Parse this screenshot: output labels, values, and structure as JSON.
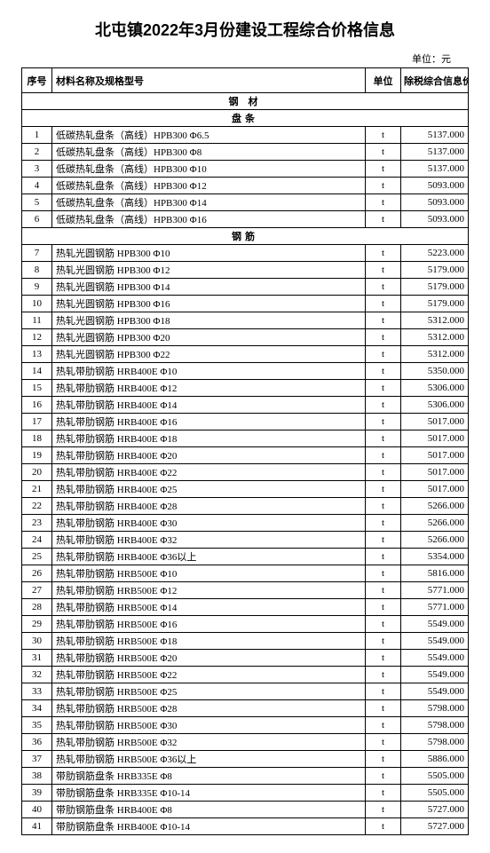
{
  "title": "北屯镇2022年3月份建设工程综合价格信息",
  "unit_label": "单位：元",
  "headers": {
    "seq": "序号",
    "name": "材料名称及规格型号",
    "unit": "单位",
    "price": "除税综合信息价"
  },
  "section_steel": "钢  材",
  "section_pantiao": "盘条",
  "section_gangjin": "钢筋",
  "rows_pantiao": [
    {
      "seq": "1",
      "name": "低碳热轧盘条（高线）HPB300 Φ6.5",
      "unit": "t",
      "price": "5137.000"
    },
    {
      "seq": "2",
      "name": "低碳热轧盘条（高线）HPB300 Φ8",
      "unit": "t",
      "price": "5137.000"
    },
    {
      "seq": "3",
      "name": "低碳热轧盘条（高线）HPB300 Φ10",
      "unit": "t",
      "price": "5137.000"
    },
    {
      "seq": "4",
      "name": "低碳热轧盘条（高线）HPB300 Φ12",
      "unit": "t",
      "price": "5093.000"
    },
    {
      "seq": "5",
      "name": "低碳热轧盘条（高线）HPB300 Φ14",
      "unit": "t",
      "price": "5093.000"
    },
    {
      "seq": "6",
      "name": "低碳热轧盘条（高线）HPB300 Φ16",
      "unit": "t",
      "price": "5093.000"
    }
  ],
  "rows_gangjin": [
    {
      "seq": "7",
      "name": "热轧光圆钢筋 HPB300 Φ10",
      "unit": "t",
      "price": "5223.000"
    },
    {
      "seq": "8",
      "name": "热轧光圆钢筋 HPB300 Φ12",
      "unit": "t",
      "price": "5179.000"
    },
    {
      "seq": "9",
      "name": "热轧光圆钢筋 HPB300 Φ14",
      "unit": "t",
      "price": "5179.000"
    },
    {
      "seq": "10",
      "name": "热轧光圆钢筋 HPB300 Φ16",
      "unit": "t",
      "price": "5179.000"
    },
    {
      "seq": "11",
      "name": "热轧光圆钢筋 HPB300 Φ18",
      "unit": "t",
      "price": "5312.000"
    },
    {
      "seq": "12",
      "name": "热轧光圆钢筋 HPB300 Φ20",
      "unit": "t",
      "price": "5312.000"
    },
    {
      "seq": "13",
      "name": "热轧光圆钢筋 HPB300 Φ22",
      "unit": "t",
      "price": "5312.000"
    },
    {
      "seq": "14",
      "name": "热轧带肋钢筋 HRB400E Φ10",
      "unit": "t",
      "price": "5350.000"
    },
    {
      "seq": "15",
      "name": "热轧带肋钢筋 HRB400E Φ12",
      "unit": "t",
      "price": "5306.000"
    },
    {
      "seq": "16",
      "name": "热轧带肋钢筋 HRB400E Φ14",
      "unit": "t",
      "price": "5306.000"
    },
    {
      "seq": "17",
      "name": "热轧带肋钢筋 HRB400E Φ16",
      "unit": "t",
      "price": "5017.000"
    },
    {
      "seq": "18",
      "name": "热轧带肋钢筋 HRB400E Φ18",
      "unit": "t",
      "price": "5017.000"
    },
    {
      "seq": "19",
      "name": "热轧带肋钢筋 HRB400E Φ20",
      "unit": "t",
      "price": "5017.000"
    },
    {
      "seq": "20",
      "name": "热轧带肋钢筋 HRB400E Φ22",
      "unit": "t",
      "price": "5017.000"
    },
    {
      "seq": "21",
      "name": "热轧带肋钢筋 HRB400E Φ25",
      "unit": "t",
      "price": "5017.000"
    },
    {
      "seq": "22",
      "name": "热轧带肋钢筋 HRB400E Φ28",
      "unit": "t",
      "price": "5266.000"
    },
    {
      "seq": "23",
      "name": "热轧带肋钢筋 HRB400E Φ30",
      "unit": "t",
      "price": "5266.000"
    },
    {
      "seq": "24",
      "name": "热轧带肋钢筋 HRB400E Φ32",
      "unit": "t",
      "price": "5266.000"
    },
    {
      "seq": "25",
      "name": "热轧带肋钢筋 HRB400E Φ36以上",
      "unit": "t",
      "price": "5354.000"
    },
    {
      "seq": "26",
      "name": "热轧带肋钢筋 HRB500E Φ10",
      "unit": "t",
      "price": "5816.000"
    },
    {
      "seq": "27",
      "name": "热轧带肋钢筋 HRB500E Φ12",
      "unit": "t",
      "price": "5771.000"
    },
    {
      "seq": "28",
      "name": "热轧带肋钢筋 HRB500E Φ14",
      "unit": "t",
      "price": "5771.000"
    },
    {
      "seq": "29",
      "name": "热轧带肋钢筋 HRB500E Φ16",
      "unit": "t",
      "price": "5549.000"
    },
    {
      "seq": "30",
      "name": "热轧带肋钢筋 HRB500E Φ18",
      "unit": "t",
      "price": "5549.000"
    },
    {
      "seq": "31",
      "name": "热轧带肋钢筋 HRB500E Φ20",
      "unit": "t",
      "price": "5549.000"
    },
    {
      "seq": "32",
      "name": "热轧带肋钢筋 HRB500E Φ22",
      "unit": "t",
      "price": "5549.000"
    },
    {
      "seq": "33",
      "name": "热轧带肋钢筋 HRB500E Φ25",
      "unit": "t",
      "price": "5549.000"
    },
    {
      "seq": "34",
      "name": "热轧带肋钢筋 HRB500E Φ28",
      "unit": "t",
      "price": "5798.000"
    },
    {
      "seq": "35",
      "name": "热轧带肋钢筋 HRB500E Φ30",
      "unit": "t",
      "price": "5798.000"
    },
    {
      "seq": "36",
      "name": "热轧带肋钢筋 HRB500E Φ32",
      "unit": "t",
      "price": "5798.000"
    },
    {
      "seq": "37",
      "name": "热轧带肋钢筋 HRB500E Φ36以上",
      "unit": "t",
      "price": "5886.000"
    },
    {
      "seq": "38",
      "name": "带肋钢筋盘条 HRB335E Φ8",
      "unit": "t",
      "price": "5505.000"
    },
    {
      "seq": "39",
      "name": "带肋钢筋盘条 HRB335E Φ10-14",
      "unit": "t",
      "price": "5505.000"
    },
    {
      "seq": "40",
      "name": "带肋钢筋盘条 HRB400E Φ8",
      "unit": "t",
      "price": "5727.000"
    },
    {
      "seq": "41",
      "name": "带肋钢筋盘条 HRB400E Φ10-14",
      "unit": "t",
      "price": "5727.000"
    }
  ]
}
